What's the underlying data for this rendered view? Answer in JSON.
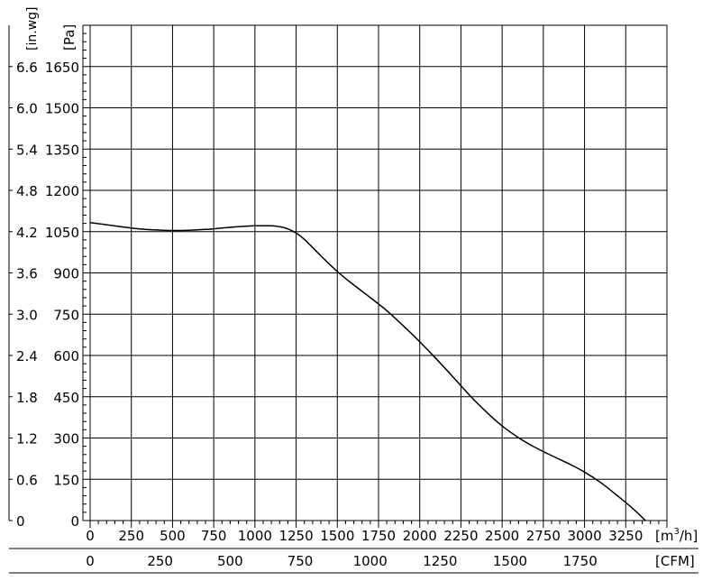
{
  "chart_data": {
    "type": "line",
    "xlabel_primary": "[m³/h]",
    "xlabel_primary_base": "[m",
    "xlabel_primary_sup": "3",
    "xlabel_primary_tail": "/h]",
    "xlabel_secondary": "[CFM]",
    "ylabel_left_inwg": "[in.wg]",
    "ylabel_left_pa": "[Pa]",
    "x_m3h_ticks": [
      "0",
      "250",
      "500",
      "750",
      "1000",
      "1250",
      "1500",
      "1750",
      "2000",
      "2250",
      "2500",
      "2750",
      "3000",
      "3250"
    ],
    "x_cfm_ticks": [
      "0",
      "250",
      "500",
      "750",
      "1000",
      "1250",
      "1500",
      "1750"
    ],
    "x_cfm_values": [
      0,
      250,
      500,
      750,
      1000,
      1250,
      1500,
      1750
    ],
    "y_pa_ticks": [
      "0",
      "150",
      "300",
      "450",
      "600",
      "750",
      "900",
      "1050",
      "1200",
      "1350",
      "1500",
      "1650"
    ],
    "y_inwg_ticks": [
      "0",
      "0.6",
      "1.2",
      "1.8",
      "2.4",
      "3.0",
      "3.6",
      "4.2",
      "4.8",
      "5.4",
      "6.0",
      "6.6"
    ],
    "y_pa_values": [
      0,
      150,
      300,
      450,
      600,
      750,
      900,
      1050,
      1200,
      1350,
      1500,
      1650
    ],
    "xlim": [
      0,
      3500
    ],
    "ylim": [
      0,
      1800
    ],
    "grid": true,
    "series": [
      {
        "x": [
          0,
          100,
          200,
          300,
          400,
          500,
          600,
          700,
          800,
          900,
          1000,
          1100,
          1150,
          1200,
          1250,
          1300,
          1400,
          1500,
          1600,
          1700,
          1800,
          1900,
          2000,
          2100,
          2200,
          2300,
          2400,
          2500,
          2600,
          2700,
          2800,
          2900,
          3000,
          3100,
          3200,
          3300,
          3400,
          3430
        ],
        "y": [
          1083,
          1075,
          1067,
          1060,
          1056,
          1054,
          1055,
          1058,
          1063,
          1068,
          1071,
          1071,
          1068,
          1060,
          1045,
          1022,
          962,
          905,
          856,
          810,
          763,
          708,
          650,
          588,
          523,
          457,
          397,
          344,
          301,
          266,
          236,
          208,
          176,
          137,
          90,
          40,
          -18,
          -35
        ],
        "color": "#000000"
      }
    ]
  }
}
